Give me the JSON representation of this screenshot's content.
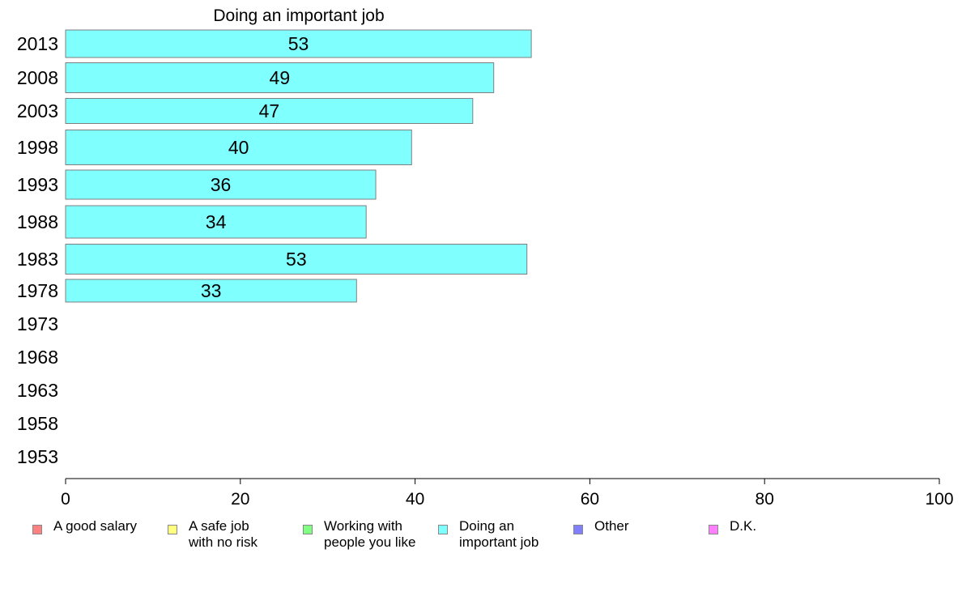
{
  "chart_data": {
    "type": "bar",
    "orientation": "horizontal",
    "title": "Doing an important job",
    "categories": [
      "2013",
      "2008",
      "2003",
      "1998",
      "1993",
      "1988",
      "1983",
      "1978",
      "1973",
      "1968",
      "1963",
      "1958",
      "1953"
    ],
    "series": [
      {
        "name": "Doing an important job",
        "color": "#80ffff",
        "values": [
          53.3,
          49.0,
          46.6,
          39.6,
          35.5,
          34.4,
          52.8,
          33.3,
          null,
          null,
          null,
          null,
          null
        ],
        "labels": [
          "53",
          "49",
          "47",
          "40",
          "36",
          "34",
          "53",
          "33",
          "",
          "",
          "",
          "",
          ""
        ]
      }
    ],
    "xlim": [
      0,
      100
    ],
    "xticks": [
      0,
      20,
      40,
      60,
      80,
      100
    ],
    "grid": false,
    "legend_position": "bottom"
  },
  "legend": [
    {
      "label": "A good salary",
      "color": "#ff8080"
    },
    {
      "label": "A safe job\nwith no risk",
      "color": "#ffff80"
    },
    {
      "label": "Working with\npeople you like",
      "color": "#80ff80"
    },
    {
      "label": "Doing an\nimportant job",
      "color": "#80ffff"
    },
    {
      "label": "Other",
      "color": "#8080ff"
    },
    {
      "label": "D.K.",
      "color": "#ff80ff"
    }
  ]
}
